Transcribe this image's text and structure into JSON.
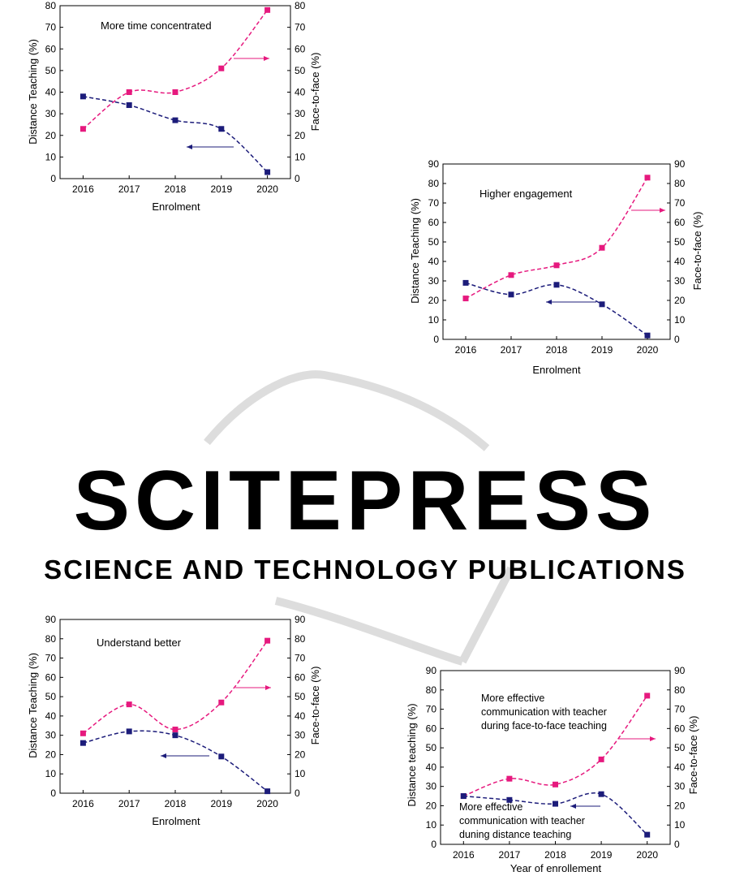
{
  "watermark": {
    "line1": "SCITEPRESS",
    "line2": "SCIENCE AND TECHNOLOGY PUBLICATIONS",
    "color": "#c8c8c8"
  },
  "colors": {
    "face_to_face": "#e6197e",
    "distance": "#1c1c7a",
    "axis": "#000000"
  },
  "chart_data": [
    {
      "type": "line",
      "categories": [
        "2016",
        "2017",
        "2018",
        "2019",
        "2020"
      ],
      "ylim": [
        0,
        80
      ],
      "y_ticks": [
        0,
        10,
        20,
        30,
        40,
        50,
        60,
        70,
        80
      ],
      "xlabel": "Enrolment",
      "ylabel_left": "Distance Teaching (%)",
      "ylabel_right": "Face-to-face (%)",
      "annotations": [
        {
          "text": "More time concentrated",
          "color": "#000000"
        }
      ],
      "series": [
        {
          "values": [
            23,
            40,
            40,
            51,
            78
          ],
          "color": "#e6197e",
          "arrow": "right"
        },
        {
          "values": [
            38,
            34,
            27,
            23,
            3
          ],
          "color": "#1c1c7a",
          "arrow": "left"
        }
      ]
    },
    {
      "type": "line",
      "categories": [
        "2016",
        "2017",
        "2018",
        "2019",
        "2020"
      ],
      "ylim": [
        0,
        90
      ],
      "y_ticks": [
        0,
        10,
        20,
        30,
        40,
        50,
        60,
        70,
        80,
        90
      ],
      "xlabel": "Enrolment",
      "ylabel_left": "Distance Teaching (%)",
      "ylabel_right": "Face-to-face (%)",
      "annotations": [
        {
          "text": "Higher engagement",
          "color": "#000000"
        }
      ],
      "series": [
        {
          "values": [
            21,
            33,
            38,
            47,
            83
          ],
          "color": "#e6197e",
          "arrow": "right"
        },
        {
          "values": [
            29,
            23,
            28,
            18,
            2
          ],
          "color": "#1c1c7a",
          "arrow": "left"
        }
      ]
    },
    {
      "type": "line",
      "categories": [
        "2016",
        "2017",
        "2018",
        "2019",
        "2020"
      ],
      "ylim": [
        0,
        90
      ],
      "y_ticks": [
        0,
        10,
        20,
        30,
        40,
        50,
        60,
        70,
        80,
        90
      ],
      "xlabel": "Enrolment",
      "ylabel_left": "Distance Teaching (%)",
      "ylabel_right": "Face-to-face (%)",
      "annotations": [
        {
          "text": "Understand better",
          "color": "#000000"
        }
      ],
      "series": [
        {
          "values": [
            31,
            46,
            33,
            47,
            79
          ],
          "color": "#e6197e",
          "arrow": "right"
        },
        {
          "values": [
            26,
            32,
            30,
            19,
            1
          ],
          "color": "#1c1c7a",
          "arrow": "left"
        }
      ]
    },
    {
      "type": "line",
      "categories": [
        "2016",
        "2017",
        "2018",
        "2019",
        "2020"
      ],
      "ylim": [
        0,
        90
      ],
      "y_ticks": [
        0,
        10,
        20,
        30,
        40,
        50,
        60,
        70,
        80,
        90
      ],
      "xlabel": "Year of enrollement",
      "ylabel_left": "Distance teaching (%)",
      "ylabel_right": "Face-to-face (%)",
      "annotations": [
        {
          "lines": [
            "More effective",
            "communication with teacher",
            "during face-to-face teaching"
          ],
          "color": "#e6197e"
        },
        {
          "lines": [
            "More effective",
            "communication with teacher",
            "duning distance teaching"
          ],
          "color": "#1c1c7a"
        }
      ],
      "series": [
        {
          "values": [
            25,
            34,
            31,
            44,
            77
          ],
          "color": "#e6197e",
          "arrow": "right"
        },
        {
          "values": [
            25,
            23,
            21,
            26,
            5
          ],
          "color": "#1c1c7a",
          "arrow": "left"
        }
      ]
    }
  ]
}
